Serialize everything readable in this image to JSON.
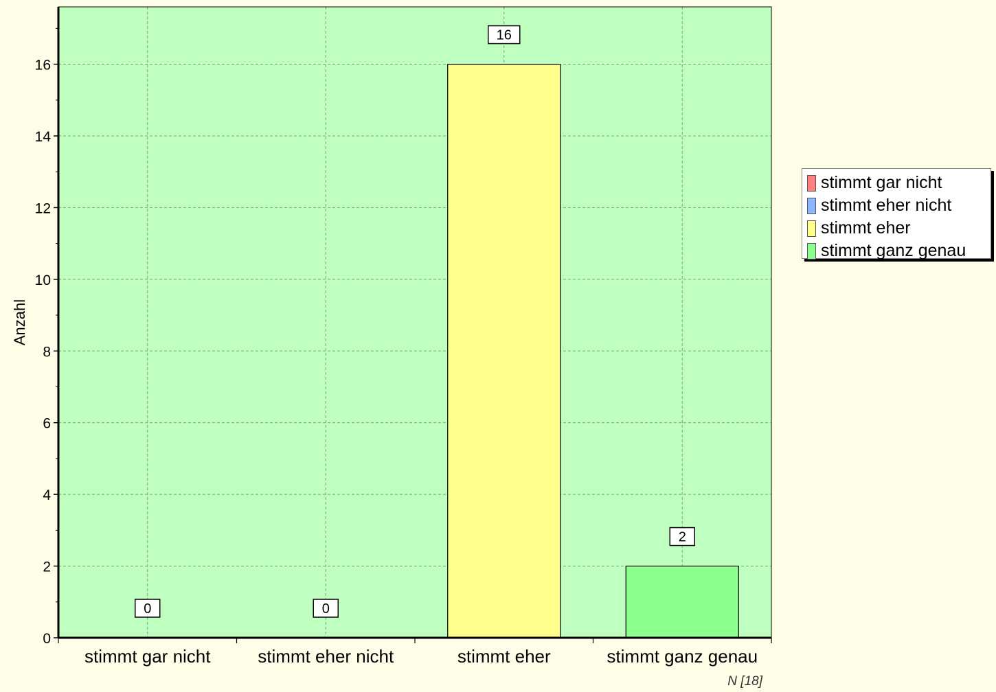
{
  "chart_data": {
    "type": "bar",
    "categories": [
      "stimmt gar nicht",
      "stimmt eher nicht",
      "stimmt eher",
      "stimmt ganz genau"
    ],
    "values": [
      0,
      0,
      16,
      2
    ],
    "data_labels": [
      "0",
      "0",
      "16",
      "2"
    ],
    "colors": [
      "#ff8080",
      "#8cb4ff",
      "#ffff8c",
      "#8cff8c"
    ],
    "ylabel": "Anzahl",
    "xlabel": "",
    "ylim": [
      0,
      17.6
    ],
    "yticks": [
      0,
      2,
      4,
      6,
      8,
      10,
      12,
      14,
      16
    ],
    "grid": true,
    "plot_background": "#bfffbf",
    "legend_placement": "right",
    "legend": [
      "stimmt gar nicht",
      "stimmt eher nicht",
      "stimmt eher",
      "stimmt ganz genau"
    ],
    "note": "N [18]"
  }
}
